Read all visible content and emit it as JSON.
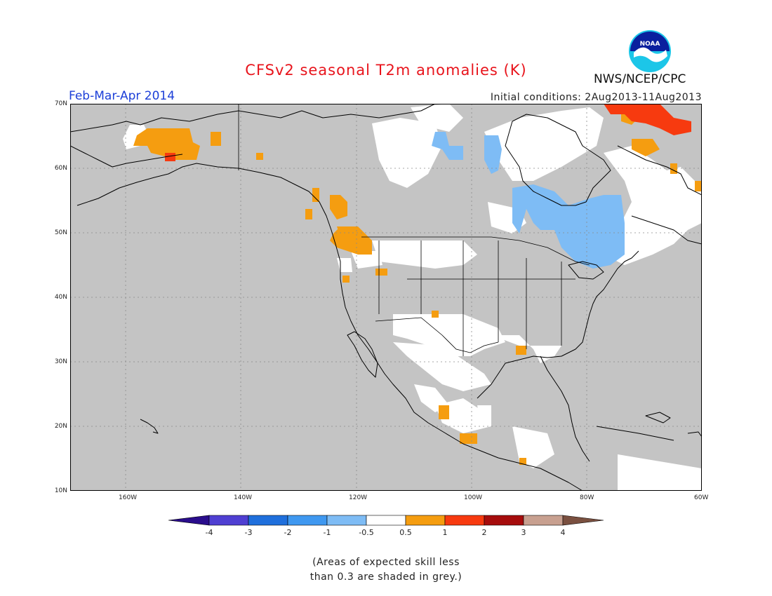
{
  "header": {
    "title": "CFSv2 seasonal T2m anomalies (K)",
    "period": "Feb-Mar-Apr 2014",
    "initial_conditions": "Initial conditions: 2Aug2013-11Aug2013",
    "agency": "NWS/NCEP/CPC",
    "logo_text": "NOAA"
  },
  "map": {
    "lat_labels": [
      "70N",
      "60N",
      "50N",
      "40N",
      "30N",
      "20N",
      "10N"
    ],
    "lon_labels": [
      "160W",
      "140W",
      "120W",
      "100W",
      "80W",
      "60W"
    ],
    "colors": {
      "background_grey": "#c4c4c4",
      "frame": "#000000",
      "gridline": "#888888",
      "coast": "#000000"
    },
    "regions": [
      {
        "name": "Alaska warm anomaly",
        "category": "0.5 to 1"
      },
      {
        "name": "Pacific Northwest warm anomaly",
        "category": "0.5 to 1"
      },
      {
        "name": "Hudson Bay / Ontario / Quebec cold anomaly",
        "category": "-1 to -0.5"
      },
      {
        "name": "Baffin Island / Labrador warm anomaly",
        "category": "1 to 2"
      },
      {
        "name": "Southwest US / Mexico near-normal",
        "category": "-0.5 to 0.5"
      }
    ]
  },
  "colorbar": {
    "ticks": [
      "-4",
      "-3",
      "-2",
      "-1",
      "-0.5",
      "0.5",
      "1",
      "2",
      "3",
      "4"
    ],
    "colors": [
      "#2a0d8c",
      "#4f3fd2",
      "#1f6fdc",
      "#3f98f0",
      "#7ebcf5",
      "#ffffff",
      "#f59d10",
      "#f73a0f",
      "#a60c0c",
      "#c8a090",
      "#7a5040"
    ]
  },
  "note": {
    "line1": "(Areas of expected skill less",
    "line2": "than 0.3 are shaded in grey.)"
  }
}
